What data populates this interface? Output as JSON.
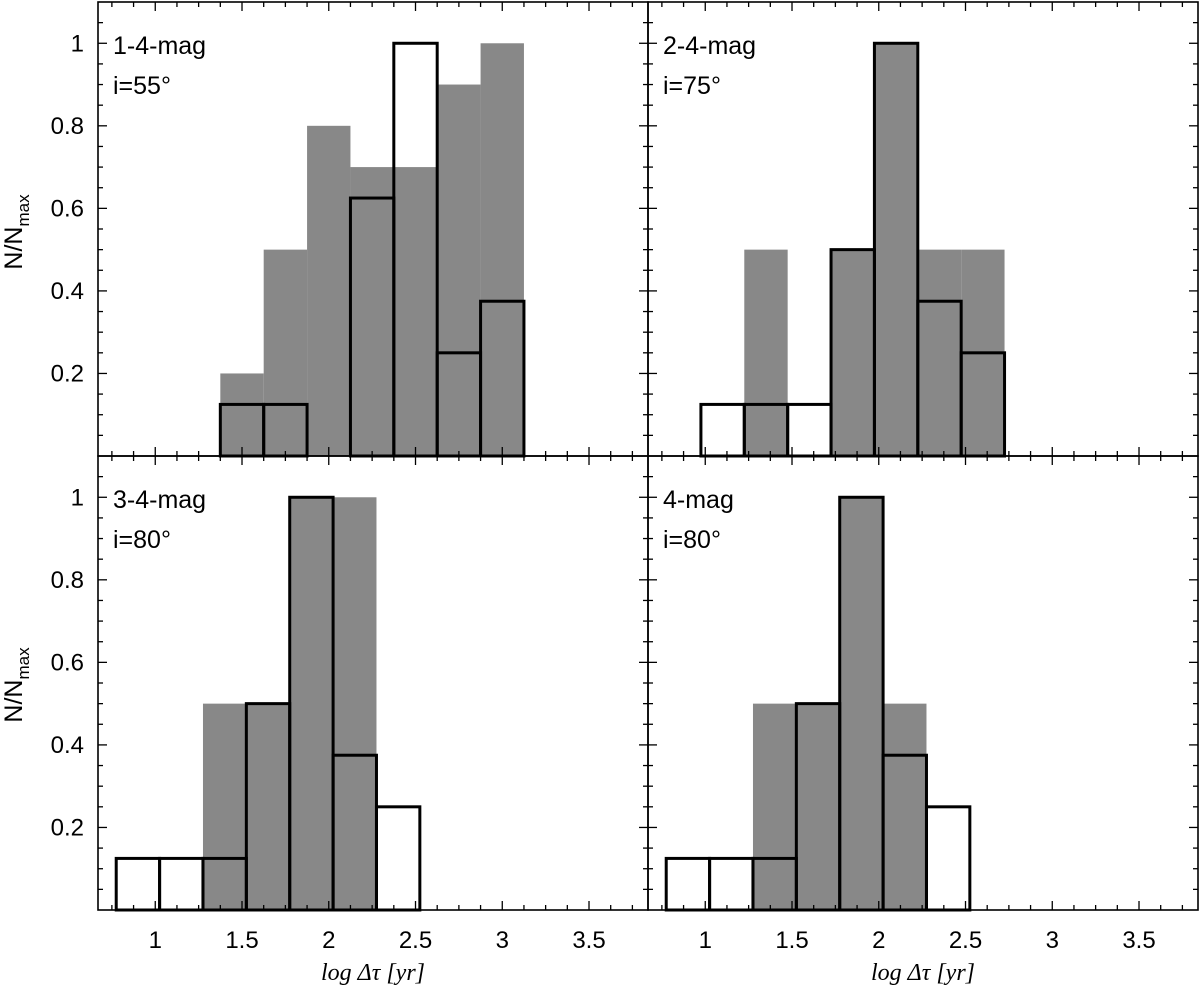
{
  "chart_data": {
    "type": "bar",
    "layout": "2x2 panels, shared axes",
    "xlabel": "log Δτ [yr]",
    "ylabel_main": "N/N",
    "ylabel_sub": "max",
    "xlim": [
      0.67,
      3.84
    ],
    "ylim": [
      0,
      1.1
    ],
    "xticks": [
      1,
      1.5,
      2,
      2.5,
      3,
      3.5
    ],
    "xtick_labels": [
      "1",
      "1.5",
      "2",
      "2.5",
      "3",
      "3.5"
    ],
    "yticks": [
      0.2,
      0.4,
      0.6,
      0.8,
      1
    ],
    "ytick_labels": [
      "0.2",
      "0.4",
      "0.6",
      "0.8",
      "1"
    ],
    "series_styles": {
      "filled": {
        "name": "filled (gray)",
        "color": "#888888"
      },
      "outline": {
        "name": "outline (open)",
        "color": "#000000"
      }
    },
    "panels": [
      {
        "label": "1-4-mag",
        "inclination": "i=55°",
        "filled": {
          "edges": [
            1.375,
            1.625,
            1.875,
            2.125,
            2.375,
            2.625,
            2.875,
            3.125
          ],
          "values": [
            0.2,
            0.5,
            0.8,
            0.7,
            0.7,
            0.9,
            1.0
          ]
        },
        "outline": {
          "edges": [
            1.375,
            1.625,
            1.875,
            2.125,
            2.375,
            2.625,
            2.875,
            3.125
          ],
          "values": [
            0.125,
            0.125,
            0.0,
            0.625,
            1.0,
            0.25,
            0.375
          ]
        }
      },
      {
        "label": "2-4-mag",
        "inclination": "i=75°",
        "filled": {
          "edges": [
            1.225,
            1.475,
            1.725,
            1.975,
            2.225,
            2.475,
            2.725
          ],
          "values": [
            0.5,
            0.0,
            0.5,
            1.0,
            0.5,
            0.5
          ]
        },
        "outline": {
          "edges": [
            0.975,
            1.225,
            1.475,
            1.725,
            1.975,
            2.225,
            2.475,
            2.725
          ],
          "values": [
            0.125,
            0.125,
            0.125,
            0.5,
            1.0,
            0.375,
            0.25
          ]
        }
      },
      {
        "label": "3-4-mag",
        "inclination": "i=80°",
        "filled": {
          "edges": [
            1.275,
            1.525,
            1.775,
            2.025,
            2.275
          ],
          "values": [
            0.5,
            0.5,
            1.0,
            1.0
          ]
        },
        "outline": {
          "edges": [
            0.775,
            1.025,
            1.275,
            1.525,
            1.775,
            2.025,
            2.275,
            2.525
          ],
          "values": [
            0.125,
            0.125,
            0.125,
            0.5,
            1.0,
            0.375,
            0.25
          ]
        }
      },
      {
        "label": "4-mag",
        "inclination": "i=80°",
        "filled": {
          "edges": [
            1.275,
            1.525,
            1.775,
            2.025,
            2.275
          ],
          "values": [
            0.5,
            0.5,
            1.0,
            0.5
          ]
        },
        "outline": {
          "edges": [
            0.775,
            1.025,
            1.275,
            1.525,
            1.775,
            2.025,
            2.275,
            2.525
          ],
          "values": [
            0.125,
            0.125,
            0.125,
            0.5,
            1.0,
            0.375,
            0.25
          ]
        }
      }
    ]
  }
}
